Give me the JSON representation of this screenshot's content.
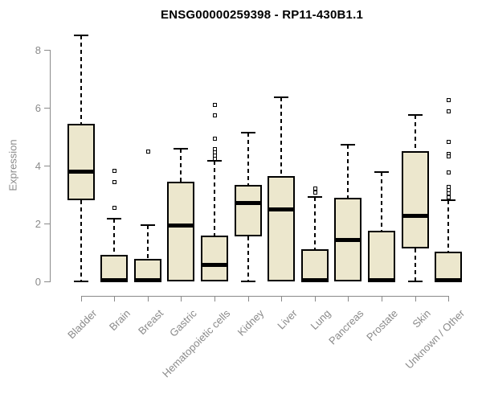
{
  "chart_data": {
    "type": "box",
    "title": "ENSG00000259398 - RP11-430B1.1",
    "xlabel": "",
    "ylabel": "Expression",
    "ylim": [
      0,
      8.6
    ],
    "yticks": [
      0,
      2,
      4,
      6,
      8
    ],
    "grid": false,
    "legend": "none",
    "categories": [
      "Bladder",
      "Brain",
      "Breast",
      "Gastric",
      "Hematopoietic cells",
      "Kidney",
      "Liver",
      "Lung",
      "Pancreas",
      "Prostate",
      "Skin",
      "Unknown / Other"
    ],
    "boxes": [
      {
        "category": "Bladder",
        "whisker_low": 0,
        "q1": 2.79,
        "median": 3.79,
        "q3": 5.45,
        "whisker_high": 8.49,
        "outliers": []
      },
      {
        "category": "Brain",
        "whisker_low": 0,
        "q1": 0,
        "median": 0.05,
        "q3": 0.92,
        "whisker_high": 2.16,
        "outliers": [
          3.83,
          3.43,
          2.56
        ]
      },
      {
        "category": "Breast",
        "whisker_low": 0,
        "q1": 0,
        "median": 0.05,
        "q3": 0.79,
        "whisker_high": 1.93,
        "outliers": [
          4.48
        ]
      },
      {
        "category": "Gastric",
        "whisker_low": 0,
        "q1": 0,
        "median": 1.95,
        "q3": 3.43,
        "whisker_high": 4.59,
        "outliers": []
      },
      {
        "category": "Hematopoietic cells",
        "whisker_low": 0,
        "q1": 0,
        "median": 0.57,
        "q3": 1.58,
        "whisker_high": 4.17,
        "outliers": [
          6.1,
          5.74,
          4.93,
          4.57,
          4.46,
          4.35,
          4.24
        ]
      },
      {
        "category": "Kidney",
        "whisker_low": 0,
        "q1": 1.56,
        "median": 2.72,
        "q3": 3.32,
        "whisker_high": 5.12,
        "outliers": []
      },
      {
        "category": "Liver",
        "whisker_low": 0,
        "q1": 0,
        "median": 2.49,
        "q3": 3.64,
        "whisker_high": 6.36,
        "outliers": []
      },
      {
        "category": "Lung",
        "whisker_low": 0,
        "q1": 0,
        "median": 0.05,
        "q3": 1.1,
        "whisker_high": 2.9,
        "outliers": [
          3.22,
          3.07
        ]
      },
      {
        "category": "Pancreas",
        "whisker_low": 0,
        "q1": 0,
        "median": 1.43,
        "q3": 2.88,
        "whisker_high": 4.71,
        "outliers": []
      },
      {
        "category": "Prostate",
        "whisker_low": 0,
        "q1": 0,
        "median": 0.05,
        "q3": 1.74,
        "whisker_high": 3.78,
        "outliers": []
      },
      {
        "category": "Skin",
        "whisker_low": 0,
        "q1": 1.14,
        "median": 2.28,
        "q3": 4.5,
        "whisker_high": 5.74,
        "outliers": []
      },
      {
        "category": "Unknown / Other",
        "whisker_low": 0,
        "q1": 0,
        "median": 0.05,
        "q3": 1.02,
        "whisker_high": 2.81,
        "outliers": [
          6.28,
          5.88,
          4.83,
          4.4,
          4.32,
          3.78,
          3.27,
          3.15,
          3.04,
          2.9
        ]
      }
    ],
    "colors": {
      "box_fill": "#ece7cd",
      "box_border": "#000000",
      "median": "#000000",
      "whisker": "#000000",
      "axis": "#8a8a8a",
      "tick_label": "#8a8a8a",
      "title": "#000000",
      "background": "#ffffff"
    }
  }
}
